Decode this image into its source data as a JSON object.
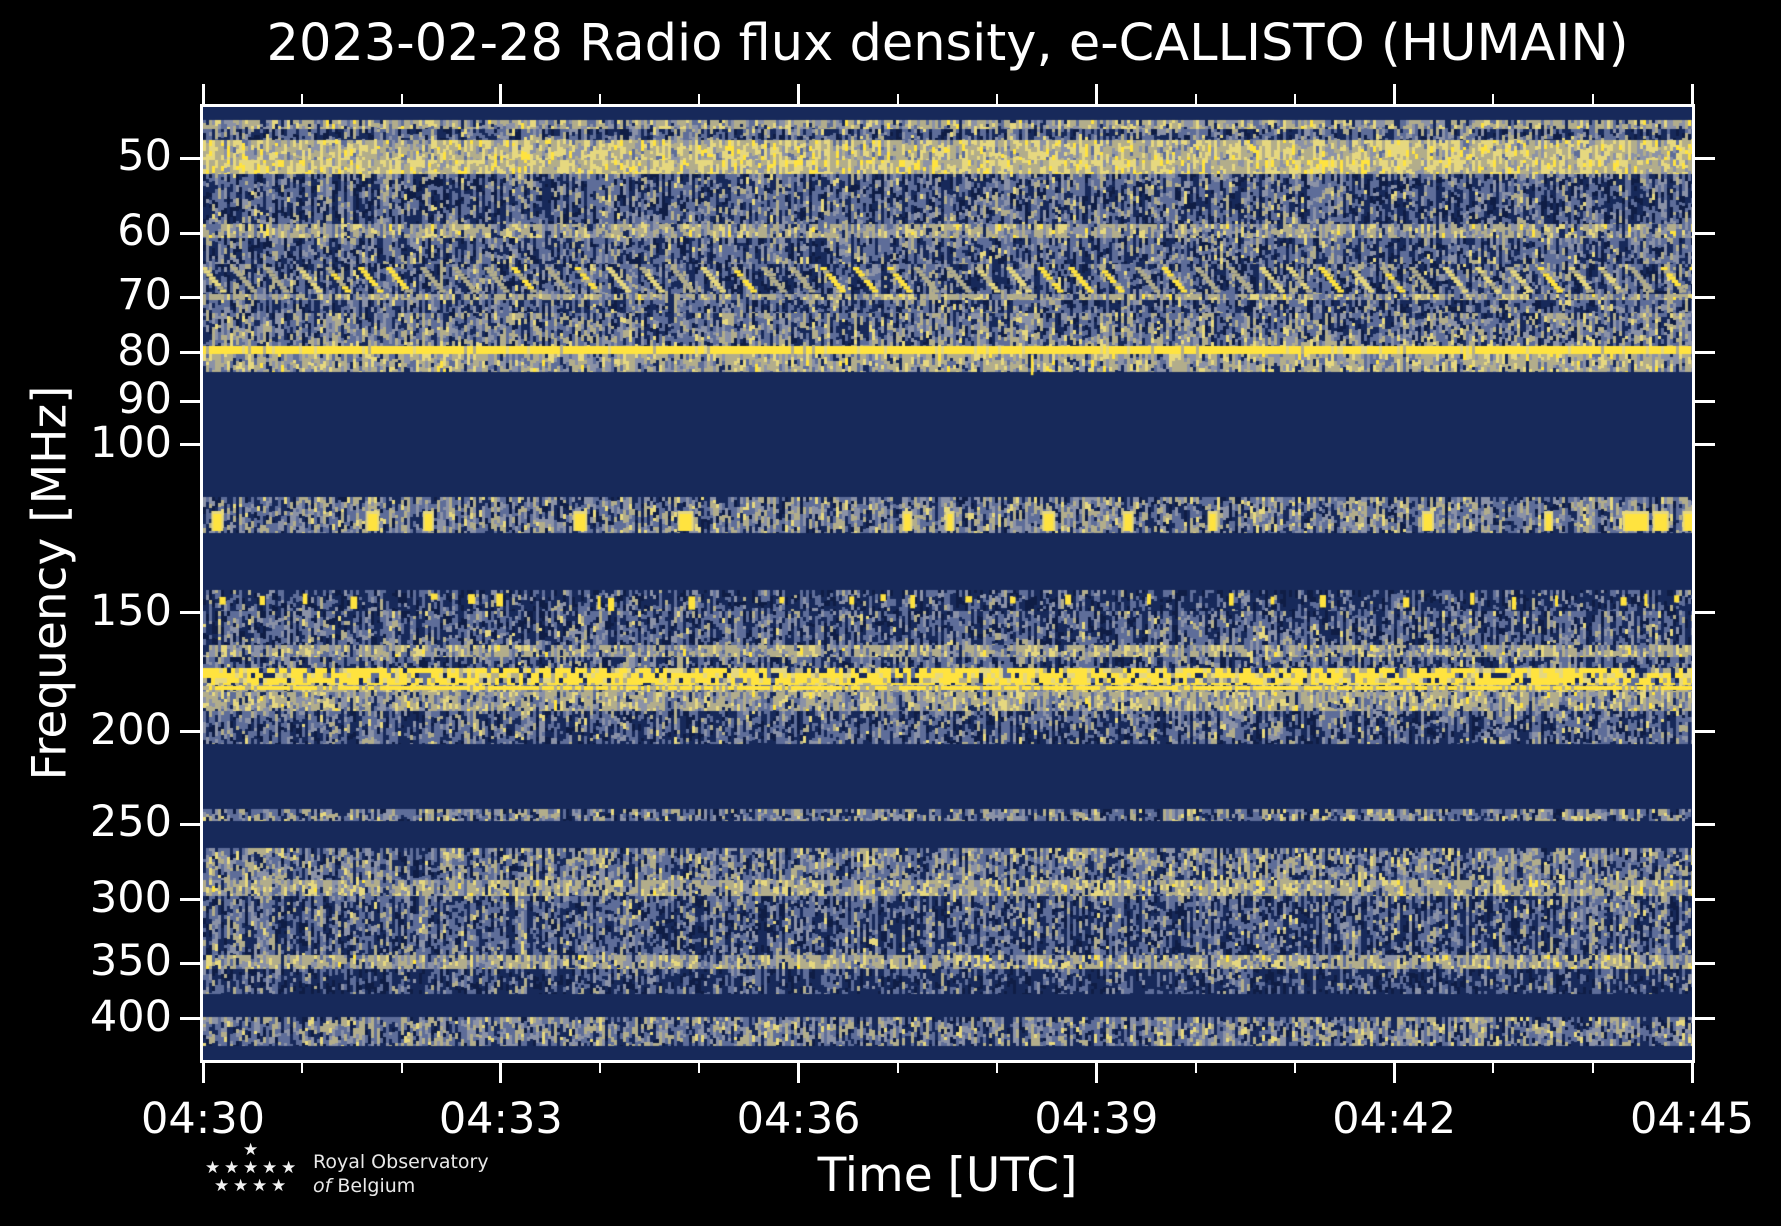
{
  "title": "2023-02-28 Radio flux density, e-CALLISTO (HUMAIN)",
  "axes": {
    "xlabel": "Time [UTC]",
    "ylabel": "Frequency [MHz]"
  },
  "logo": {
    "line1": "Royal Observatory",
    "line2_prefix": "of",
    "line2_rest": "Belgium"
  },
  "chart_data": {
    "type": "heatmap",
    "title": "2023-02-28 Radio flux density, e-CALLISTO (HUMAIN)",
    "xlabel": "Time [UTC]",
    "ylabel": "Frequency [MHz]",
    "instrument": "e-CALLISTO (HUMAIN)",
    "date": "2023-02-28",
    "x_ticks": [
      "04:30",
      "04:33",
      "04:36",
      "04:39",
      "04:42",
      "04:45"
    ],
    "x_major_interval_minutes": 3,
    "x_minor_interval_minutes": 1,
    "time_span_minutes": 15,
    "y_scale": "log",
    "y_axis_inverted": true,
    "y_ticks_mhz": [
      50,
      60,
      70,
      80,
      90,
      100,
      150,
      200,
      250,
      300,
      350,
      400
    ],
    "freq_range_mhz": [
      44.2,
      442.0
    ],
    "grid": false,
    "legend": "none",
    "colors": {
      "background": "#000000",
      "axis": "#ffffff",
      "quiet_navy": "#17295a",
      "navy_dark": "#0f1d45",
      "slate": "#5e6d99",
      "gray": "#8b92a7",
      "tan": "#b2ad8b",
      "pale_yellow": "#e6d87f",
      "bright_yellow": "#ffe33f"
    },
    "bands": [
      {
        "f0": 44.2,
        "f1": 45.6,
        "tex": "solid"
      },
      {
        "f0": 45.6,
        "f1": 46.6,
        "tex": "tan"
      },
      {
        "f0": 46.6,
        "f1": 47.9,
        "tex": "blue"
      },
      {
        "f0": 47.9,
        "f1": 50.2,
        "tex": "bright"
      },
      {
        "f0": 50.2,
        "f1": 52.0,
        "tex": "bright2"
      },
      {
        "f0": 52.0,
        "f1": 58.6,
        "tex": "blue"
      },
      {
        "f0": 58.6,
        "f1": 60.7,
        "tex": "tan"
      },
      {
        "f0": 60.7,
        "f1": 64.6,
        "tex": "blue"
      },
      {
        "f0": 64.6,
        "f1": 69.4,
        "tex": "herringbone"
      },
      {
        "f0": 69.4,
        "f1": 70.5,
        "tex": "tan"
      },
      {
        "f0": 70.5,
        "f1": 72.7,
        "tex": "blue"
      },
      {
        "f0": 72.7,
        "f1": 78.8,
        "tex": "mid"
      },
      {
        "f0": 78.8,
        "f1": 80.3,
        "tex": "yellow_line"
      },
      {
        "f0": 80.3,
        "f1": 83.9,
        "tex": "tan"
      },
      {
        "f0": 83.9,
        "f1": 113.5,
        "tex": "solid"
      },
      {
        "f0": 113.5,
        "f1": 123.8,
        "tex": "mid",
        "blobs": true
      },
      {
        "f0": 123.8,
        "f1": 141.9,
        "tex": "solid"
      },
      {
        "f0": 141.9,
        "f1": 149.5,
        "tex": "dim",
        "dots": true
      },
      {
        "f0": 149.5,
        "f1": 162.0,
        "tex": "blue"
      },
      {
        "f0": 162.0,
        "f1": 167.0,
        "tex": "tan"
      },
      {
        "f0": 167.0,
        "f1": 171.5,
        "tex": "blue"
      },
      {
        "f0": 171.5,
        "f1": 178.6,
        "tex": "yellow_dashes"
      },
      {
        "f0": 178.6,
        "f1": 181.6,
        "tex": "yellow_thin"
      },
      {
        "f0": 181.6,
        "f1": 190.3,
        "tex": "tan"
      },
      {
        "f0": 190.3,
        "f1": 205.9,
        "tex": "blue"
      },
      {
        "f0": 205.9,
        "f1": 241.0,
        "tex": "solid"
      },
      {
        "f0": 241.0,
        "f1": 247.9,
        "tex": "mid"
      },
      {
        "f0": 247.9,
        "f1": 264.6,
        "tex": "solid"
      },
      {
        "f0": 264.6,
        "f1": 286.3,
        "tex": "mid"
      },
      {
        "f0": 286.3,
        "f1": 297.7,
        "tex": "tan"
      },
      {
        "f0": 297.7,
        "f1": 342.8,
        "tex": "blue"
      },
      {
        "f0": 342.8,
        "f1": 355.1,
        "tex": "tan"
      },
      {
        "f0": 355.1,
        "f1": 376.7,
        "tex": "dim"
      },
      {
        "f0": 376.7,
        "f1": 398.4,
        "tex": "solid"
      },
      {
        "f0": 398.4,
        "f1": 427.4,
        "tex": "mid"
      },
      {
        "f0": 427.4,
        "f1": 442.0,
        "tex": "solid"
      }
    ],
    "events": {
      "bright_carrier_lines_mhz": [
        [
          78.8,
          80.3
        ],
        [
          171.5,
          178.6
        ],
        [
          178.6,
          181.6
        ]
      ],
      "burst_cluster_113_124_mhz_time_fractions": [
        [
          0.007,
          8
        ],
        [
          0.111,
          9
        ],
        [
          0.149,
          7
        ],
        [
          0.25,
          10
        ],
        [
          0.32,
          12
        ],
        [
          0.471,
          6
        ],
        [
          0.5,
          5
        ],
        [
          0.565,
          9
        ],
        [
          0.619,
          7
        ],
        [
          0.676,
          6
        ],
        [
          0.82,
          8
        ],
        [
          0.902,
          5
        ],
        [
          0.955,
          22
        ],
        [
          0.975,
          12
        ],
        [
          0.995,
          8
        ]
      ],
      "dot_cluster_142_150_mhz_time_fractions": [
        0.011,
        0.038,
        0.067,
        0.099,
        0.153,
        0.178,
        0.197,
        0.265,
        0.272,
        0.326,
        0.387,
        0.434,
        0.455,
        0.475,
        0.512,
        0.542,
        0.579,
        0.634,
        0.689,
        0.717,
        0.75,
        0.806,
        0.851,
        0.879,
        0.908,
        0.952,
        0.968,
        0.988
      ],
      "point_burst": {
        "time_fraction": 0.556,
        "freq_mhz": 80.5
      }
    }
  }
}
